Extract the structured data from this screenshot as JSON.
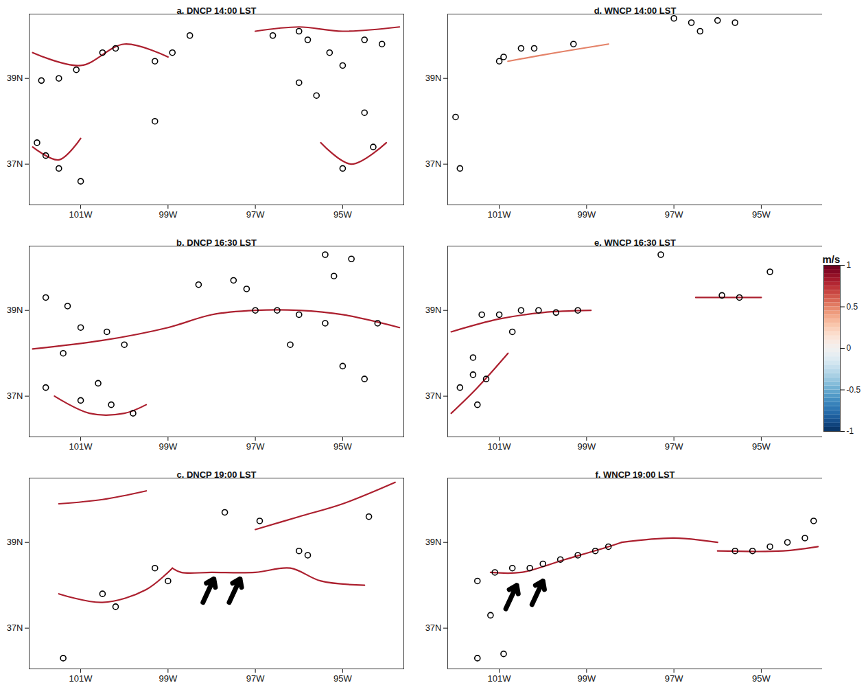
{
  "chart_data": [
    {
      "type": "map",
      "title": "a. DNCP 14:00 LST",
      "xlim": [
        -102.18,
        -93.6
      ],
      "ylim": [
        36.05,
        40.5
      ],
      "xticks": [
        {
          "value": -101,
          "label": "101W"
        },
        {
          "value": -99,
          "label": "99W"
        },
        {
          "value": -97,
          "label": "97W"
        },
        {
          "value": -95,
          "label": "95W"
        }
      ],
      "yticks": [
        {
          "value": 37,
          "label": "37N"
        },
        {
          "value": 39,
          "label": "39N"
        }
      ],
      "boundaries": [
        {
          "w": 0.8,
          "points": [
            [
              -102.1,
              39.6
            ],
            [
              -101,
              39.3
            ],
            [
              -100,
              39.8
            ],
            [
              -99,
              39.5
            ]
          ]
        },
        {
          "w": 0.8,
          "points": [
            [
              -97,
              40.1
            ],
            [
              -96,
              40.2
            ],
            [
              -95,
              40.1
            ],
            [
              -93.7,
              40.2
            ]
          ]
        },
        {
          "w": 0.8,
          "points": [
            [
              -102.1,
              37.4
            ],
            [
              -101.5,
              37.1
            ],
            [
              -101,
              37.6
            ]
          ]
        },
        {
          "w": 0.8,
          "points": [
            [
              -95.5,
              37.5
            ],
            [
              -94.8,
              37.0
            ],
            [
              -94,
              37.5
            ]
          ]
        }
      ],
      "cells": [
        [
          -101.9,
          38.95
        ],
        [
          -101.5,
          39.0
        ],
        [
          -101.1,
          39.2
        ],
        [
          -100.5,
          39.6
        ],
        [
          -100.2,
          39.7
        ],
        [
          -99.3,
          39.4
        ],
        [
          -98.9,
          39.6
        ],
        [
          -98.5,
          40.0
        ],
        [
          -96.6,
          40.0
        ],
        [
          -96.0,
          40.1
        ],
        [
          -95.8,
          39.9
        ],
        [
          -95.3,
          39.6
        ],
        [
          -94.5,
          39.9
        ],
        [
          -94.1,
          39.8
        ],
        [
          -95.0,
          39.3
        ],
        [
          -94.5,
          38.2
        ],
        [
          -95.6,
          38.6
        ],
        [
          -94.3,
          37.4
        ],
        [
          -95.0,
          36.9
        ],
        [
          -102.0,
          37.5
        ],
        [
          -101.5,
          36.9
        ],
        [
          -101.0,
          36.6
        ],
        [
          -101.8,
          37.2
        ],
        [
          -99.3,
          38.0
        ],
        [
          -96.0,
          38.9
        ]
      ],
      "arrows": []
    },
    {
      "type": "map",
      "title": "b. DNCP 16:30 LST",
      "xlim": [
        -102.18,
        -93.6
      ],
      "ylim": [
        36.05,
        40.5
      ],
      "xticks": [
        {
          "value": -101,
          "label": "101W"
        },
        {
          "value": -99,
          "label": "99W"
        },
        {
          "value": -97,
          "label": "97W"
        },
        {
          "value": -95,
          "label": "95W"
        }
      ],
      "yticks": [
        {
          "value": 37,
          "label": "37N"
        },
        {
          "value": 39,
          "label": "39N"
        }
      ],
      "boundaries": [
        {
          "w": 0.8,
          "points": [
            [
              -102.1,
              38.1
            ],
            [
              -100.5,
              38.3
            ],
            [
              -99,
              38.6
            ],
            [
              -98,
              38.9
            ],
            [
              -97,
              39.0
            ],
            [
              -96,
              39.0
            ],
            [
              -95,
              38.9
            ],
            [
              -93.7,
              38.6
            ]
          ]
        },
        {
          "w": 0.8,
          "points": [
            [
              -101.6,
              37.0
            ],
            [
              -100.8,
              36.6
            ],
            [
              -100,
              36.6
            ],
            [
              -99.5,
              36.8
            ]
          ]
        }
      ],
      "cells": [
        [
          -101.8,
          39.3
        ],
        [
          -101.3,
          39.1
        ],
        [
          -101.0,
          38.6
        ],
        [
          -100.4,
          38.5
        ],
        [
          -100.0,
          38.2
        ],
        [
          -101.4,
          38.0
        ],
        [
          -101.8,
          37.2
        ],
        [
          -101.0,
          36.9
        ],
        [
          -100.3,
          36.8
        ],
        [
          -99.8,
          36.6
        ],
        [
          -100.6,
          37.3
        ],
        [
          -97.5,
          39.7
        ],
        [
          -97.2,
          39.5
        ],
        [
          -97.0,
          39.0
        ],
        [
          -96.5,
          39.0
        ],
        [
          -96.0,
          38.9
        ],
        [
          -95.4,
          38.7
        ],
        [
          -95.2,
          39.8
        ],
        [
          -95.4,
          40.3
        ],
        [
          -94.8,
          40.2
        ],
        [
          -96.2,
          38.2
        ],
        [
          -95.0,
          37.7
        ],
        [
          -94.5,
          37.4
        ],
        [
          -94.2,
          38.7
        ],
        [
          -98.3,
          39.6
        ]
      ],
      "arrows": []
    },
    {
      "type": "map",
      "title": "c. DNCP 19:00 LST",
      "xlim": [
        -102.18,
        -93.6
      ],
      "ylim": [
        36.05,
        40.5
      ],
      "xticks": [
        {
          "value": -101,
          "label": "101W"
        },
        {
          "value": -99,
          "label": "99W"
        },
        {
          "value": -97,
          "label": "97W"
        },
        {
          "value": -95,
          "label": "95W"
        }
      ],
      "yticks": [
        {
          "value": 37,
          "label": "37N"
        },
        {
          "value": 39,
          "label": "39N"
        }
      ],
      "boundaries": [
        {
          "w": 0.8,
          "points": [
            [
              -98.9,
              38.4
            ],
            [
              -98.7,
              38.3
            ],
            [
              -98,
              38.3
            ],
            [
              -97,
              38.3
            ],
            [
              -96.2,
              38.4
            ],
            [
              -95.5,
              38.1
            ],
            [
              -94.5,
              38.0
            ]
          ]
        },
        {
          "w": 0.8,
          "points": [
            [
              -97,
              39.3
            ],
            [
              -96,
              39.6
            ],
            [
              -95,
              39.9
            ],
            [
              -93.8,
              40.4
            ]
          ]
        },
        {
          "w": 0.8,
          "points": [
            [
              -101.5,
              39.9
            ],
            [
              -100.5,
              40.0
            ],
            [
              -99.5,
              40.2
            ]
          ]
        },
        {
          "w": 0.8,
          "points": [
            [
              -101.5,
              37.8
            ],
            [
              -100.5,
              37.6
            ],
            [
              -99.5,
              37.9
            ],
            [
              -98.9,
              38.4
            ]
          ]
        }
      ],
      "cells": [
        [
          -99.3,
          38.4
        ],
        [
          -99.0,
          38.1
        ],
        [
          -100.5,
          37.8
        ],
        [
          -100.2,
          37.5
        ],
        [
          -96.0,
          38.8
        ],
        [
          -95.8,
          38.7
        ],
        [
          -96.9,
          39.5
        ],
        [
          -94.4,
          39.6
        ],
        [
          -101.4,
          36.3
        ],
        [
          -97.7,
          39.7
        ]
      ],
      "arrows": [
        {
          "from": [
            -98.2,
            37.6
          ],
          "to": [
            -97.95,
            38.15
          ]
        },
        {
          "from": [
            -97.6,
            37.6
          ],
          "to": [
            -97.35,
            38.15
          ]
        }
      ]
    },
    {
      "type": "map",
      "title": "d. WNCP 14:00 LST",
      "xlim": [
        -102.18,
        -93.6
      ],
      "ylim": [
        36.05,
        40.5
      ],
      "xticks": [
        {
          "value": -101,
          "label": "101W"
        },
        {
          "value": -99,
          "label": "99W"
        },
        {
          "value": -97,
          "label": "97W"
        },
        {
          "value": -95,
          "label": "95W"
        }
      ],
      "yticks": [
        {
          "value": 37,
          "label": "37N"
        },
        {
          "value": 39,
          "label": "39N"
        }
      ],
      "boundaries": [
        {
          "w": 0.5,
          "points": [
            [
              -100.8,
              39.4
            ],
            [
              -99.7,
              39.6
            ],
            [
              -98.5,
              39.8
            ]
          ]
        }
      ],
      "cells": [
        [
          -97.0,
          40.4
        ],
        [
          -96.6,
          40.3
        ],
        [
          -96.0,
          40.35
        ],
        [
          -95.6,
          40.3
        ],
        [
          -96.4,
          40.1
        ],
        [
          -100.5,
          39.7
        ],
        [
          -100.2,
          39.7
        ],
        [
          -100.9,
          39.5
        ],
        [
          -101.0,
          39.4
        ],
        [
          -99.3,
          39.8
        ],
        [
          -102.0,
          38.1
        ],
        [
          -101.9,
          36.9
        ]
      ],
      "arrows": []
    },
    {
      "type": "map",
      "title": "e. WNCP 16:30 LST",
      "xlim": [
        -102.18,
        -93.6
      ],
      "ylim": [
        36.05,
        40.5
      ],
      "xticks": [
        {
          "value": -101,
          "label": "101W"
        },
        {
          "value": -99,
          "label": "99W"
        },
        {
          "value": -97,
          "label": "97W"
        },
        {
          "value": -95,
          "label": "95W"
        }
      ],
      "yticks": [
        {
          "value": 37,
          "label": "37N"
        },
        {
          "value": 39,
          "label": "39N"
        }
      ],
      "boundaries": [
        {
          "w": 0.8,
          "points": [
            [
              -102.1,
              38.5
            ],
            [
              -101,
              38.8
            ],
            [
              -100,
              38.95
            ],
            [
              -98.9,
              39.0
            ]
          ]
        },
        {
          "w": 0.8,
          "points": [
            [
              -96.5,
              39.3
            ],
            [
              -95.5,
              39.3
            ],
            [
              -95,
              39.3
            ]
          ]
        },
        {
          "w": 0.8,
          "points": [
            [
              -102.1,
              36.6
            ],
            [
              -101.5,
              37.2
            ],
            [
              -100.8,
              38.0
            ]
          ]
        }
      ],
      "cells": [
        [
          -101.4,
          38.9
        ],
        [
          -101.0,
          38.9
        ],
        [
          -100.5,
          39.0
        ],
        [
          -100.1,
          39.0
        ],
        [
          -99.7,
          38.95
        ],
        [
          -99.2,
          39.0
        ],
        [
          -100.7,
          38.5
        ],
        [
          -101.6,
          37.9
        ],
        [
          -101.6,
          37.5
        ],
        [
          -101.9,
          37.2
        ],
        [
          -101.3,
          37.4
        ],
        [
          -101.5,
          36.8
        ],
        [
          -95.9,
          39.35
        ],
        [
          -95.5,
          39.3
        ],
        [
          -94.8,
          39.9
        ],
        [
          -97.3,
          40.3
        ]
      ],
      "arrows": []
    },
    {
      "type": "map",
      "title": "f. WNCP 19:00 LST",
      "xlim": [
        -102.18,
        -93.6
      ],
      "ylim": [
        36.05,
        40.5
      ],
      "xticks": [
        {
          "value": -101,
          "label": "101W"
        },
        {
          "value": -99,
          "label": "99W"
        },
        {
          "value": -97,
          "label": "97W"
        },
        {
          "value": -95,
          "label": "95W"
        }
      ],
      "yticks": [
        {
          "value": 37,
          "label": "37N"
        },
        {
          "value": 39,
          "label": "39N"
        }
      ],
      "boundaries": [
        {
          "w": 0.8,
          "points": [
            [
              -101.2,
              38.3
            ],
            [
              -100.5,
              38.3
            ],
            [
              -99.5,
              38.6
            ],
            [
              -98.5,
              38.9
            ],
            [
              -98.2,
              39.0
            ]
          ]
        },
        {
          "w": 0.8,
          "points": [
            [
              -98.2,
              39.0
            ],
            [
              -97,
              39.1
            ],
            [
              -96,
              39.0
            ]
          ]
        },
        {
          "w": 0.8,
          "points": [
            [
              -96,
              38.8
            ],
            [
              -94.5,
              38.8
            ],
            [
              -93.7,
              38.9
            ]
          ]
        }
      ],
      "cells": [
        [
          -101.5,
          38.1
        ],
        [
          -101.1,
          38.3
        ],
        [
          -100.7,
          38.4
        ],
        [
          -100.3,
          38.4
        ],
        [
          -100.0,
          38.5
        ],
        [
          -99.6,
          38.6
        ],
        [
          -99.2,
          38.7
        ],
        [
          -98.8,
          38.8
        ],
        [
          -98.5,
          38.9
        ],
        [
          -95.6,
          38.8
        ],
        [
          -95.2,
          38.8
        ],
        [
          -94.8,
          38.9
        ],
        [
          -94.4,
          39.0
        ],
        [
          -94.0,
          39.1
        ],
        [
          -93.8,
          39.5
        ],
        [
          -101.2,
          37.3
        ],
        [
          -101.5,
          36.3
        ],
        [
          -100.9,
          36.4
        ]
      ],
      "arrows": [
        {
          "from": [
            -100.85,
            37.45
          ],
          "to": [
            -100.6,
            38.0
          ]
        },
        {
          "from": [
            -100.25,
            37.55
          ],
          "to": [
            -100.0,
            38.1
          ]
        }
      ]
    }
  ],
  "colorbar": {
    "label": "m/s",
    "range": [
      -1,
      1
    ],
    "ticks": [
      -1,
      -0.5,
      0,
      0.5,
      1
    ]
  }
}
